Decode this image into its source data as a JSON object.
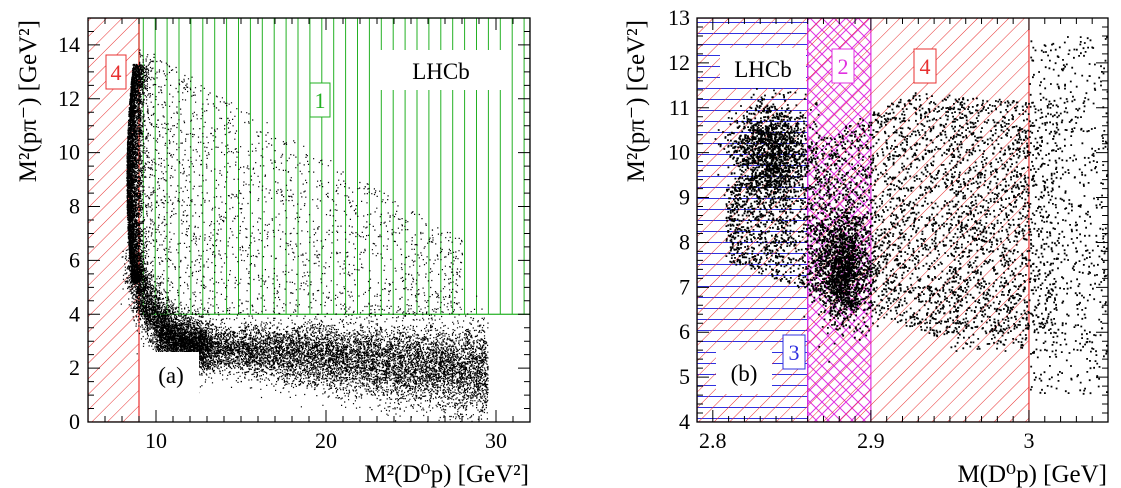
{
  "chart_data": [
    {
      "type": "scatter",
      "panel_label": "(a)",
      "experiment_label": "LHCb",
      "xlabel": "M²(D⁰p) [GeV²]",
      "ylabel": "M²(pπ⁻) [GeV²]",
      "xlim": [
        6,
        32
      ],
      "ylim": [
        0,
        15
      ],
      "xticks": [
        "10",
        "20",
        "30"
      ],
      "yticks": [
        "0",
        "2",
        "4",
        "6",
        "8",
        "10",
        "12",
        "14"
      ],
      "regions": [
        {
          "label": "1",
          "color": "#22b022",
          "x_range": [
            9,
            32
          ],
          "y_range": [
            4,
            15
          ],
          "pattern": "vertical"
        },
        {
          "label": "4",
          "color": "#e83030",
          "x_range": [
            6,
            9
          ],
          "y_range": [
            0,
            15
          ],
          "pattern": "diagonal"
        }
      ],
      "density": "Dalitz plot: dense vertical band near M²(D⁰p)≈8.6 for M²(pπ⁻) 6–12; dense low band M²(pπ⁻)≈1.5–3 extending to M²(D⁰p)≈29"
    },
    {
      "type": "scatter",
      "panel_label": "(b)",
      "experiment_label": "LHCb",
      "xlabel": "M(D⁰p) [GeV]",
      "ylabel": "M²(pπ⁻) [GeV²]",
      "xlim": [
        2.79,
        3.05
      ],
      "ylim": [
        4,
        13
      ],
      "xticks": [
        "2.8",
        "2.9",
        "3"
      ],
      "yticks": [
        "4",
        "5",
        "6",
        "7",
        "8",
        "9",
        "10",
        "11",
        "12",
        "13"
      ],
      "regions": [
        {
          "label": "3",
          "color": "#3030e0",
          "x_range": [
            2.79,
            2.86
          ],
          "y_range": [
            4,
            13
          ],
          "pattern": "horizontal"
        },
        {
          "label": "2",
          "color": "#e030e0",
          "x_range": [
            2.86,
            2.9
          ],
          "y_range": [
            4,
            13
          ],
          "pattern": "crosshatch"
        },
        {
          "label": "4",
          "color": "#e83030",
          "x_range": [
            2.79,
            3.0
          ],
          "y_range": [
            4,
            13
          ],
          "pattern": "diagonal"
        }
      ],
      "density": "dense wedge from M(D⁰p)≈2.81 widening to the right, upper edge ~11.5, lower edge ~6; concentration near 2.88 at M²(pπ⁻)≈7–8"
    }
  ]
}
